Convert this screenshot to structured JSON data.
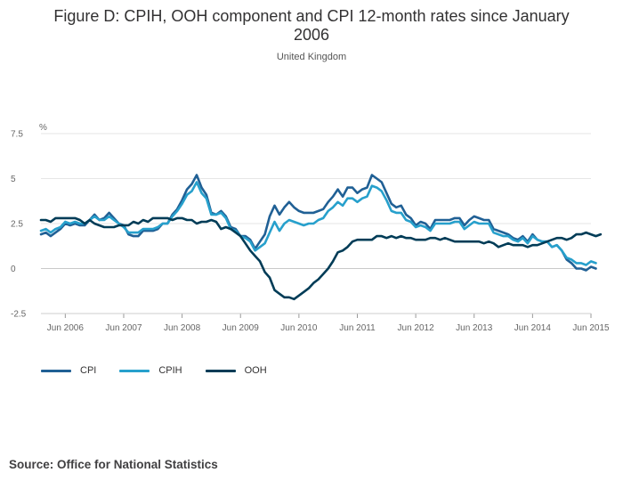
{
  "title": "Figure D: CPIH, OOH component and CPI 12-month rates since January 2006",
  "subtitle": "United Kingdom",
  "source": "Source: Office for National Statistics",
  "colors": {
    "CPI": "#206095",
    "CPIH": "#27a0cc",
    "OOH": "#003c57",
    "grid": "#e6e6e6",
    "zero": "#c9c9c9"
  },
  "chart_data": {
    "type": "line",
    "ylabel": "%",
    "ylim": [
      -2.5,
      7.5
    ],
    "yticks": [
      -2.5,
      0,
      2.5,
      5,
      7.5
    ],
    "ytick_labels": [
      "-2.5",
      "0",
      "2.5",
      "5",
      "7.5"
    ],
    "x_start": "2006-01",
    "x_end": "2015-06",
    "xtick_dates": [
      "2006-06",
      "2007-06",
      "2008-06",
      "2009-06",
      "2010-06",
      "2011-06",
      "2012-06",
      "2013-06",
      "2014-06",
      "2015-06"
    ],
    "xtick_labels": [
      "Jun 2006",
      "Jun 2007",
      "Jun 2008",
      "Jun 2009",
      "Jun 2010",
      "Jun 2011",
      "Jun 2012",
      "Jun 2013",
      "Jun 2014",
      "Jun 2015"
    ],
    "grid": true,
    "legend_position": "bottom-left",
    "series": [
      {
        "name": "CPI",
        "values": [
          1.9,
          2.0,
          1.8,
          2.0,
          2.2,
          2.5,
          2.4,
          2.5,
          2.4,
          2.4,
          2.7,
          3.0,
          2.7,
          2.8,
          3.1,
          2.8,
          2.5,
          2.4,
          1.9,
          1.8,
          1.8,
          2.1,
          2.1,
          2.1,
          2.2,
          2.5,
          2.5,
          3.0,
          3.3,
          3.8,
          4.4,
          4.7,
          5.2,
          4.5,
          4.1,
          3.1,
          3.0,
          3.2,
          2.9,
          2.3,
          2.2,
          1.8,
          1.8,
          1.6,
          1.1,
          1.5,
          1.9,
          2.9,
          3.5,
          3.0,
          3.4,
          3.7,
          3.4,
          3.2,
          3.1,
          3.1,
          3.1,
          3.2,
          3.3,
          3.7,
          4.0,
          4.4,
          4.0,
          4.5,
          4.5,
          4.2,
          4.4,
          4.5,
          5.2,
          5.0,
          4.8,
          4.2,
          3.6,
          3.4,
          3.5,
          3.0,
          2.8,
          2.4,
          2.6,
          2.5,
          2.2,
          2.7,
          2.7,
          2.7,
          2.7,
          2.8,
          2.8,
          2.4,
          2.7,
          2.9,
          2.8,
          2.7,
          2.7,
          2.2,
          2.1,
          2.0,
          1.9,
          1.7,
          1.6,
          1.8,
          1.5,
          1.9,
          1.6,
          1.5,
          1.5,
          1.2,
          1.3,
          1.0,
          0.5,
          0.3,
          0.0,
          0.0,
          -0.1,
          0.1,
          0.0
        ]
      },
      {
        "name": "CPIH",
        "values": [
          2.1,
          2.2,
          2.0,
          2.2,
          2.3,
          2.6,
          2.5,
          2.6,
          2.5,
          2.5,
          2.7,
          2.9,
          2.7,
          2.7,
          2.9,
          2.7,
          2.5,
          2.3,
          2.0,
          2.0,
          2.0,
          2.2,
          2.2,
          2.2,
          2.3,
          2.5,
          2.5,
          2.9,
          3.2,
          3.6,
          4.1,
          4.3,
          4.8,
          4.2,
          3.9,
          3.0,
          3.0,
          3.1,
          2.8,
          2.2,
          2.1,
          1.8,
          1.7,
          1.5,
          1.0,
          1.2,
          1.4,
          2.0,
          2.6,
          2.1,
          2.5,
          2.7,
          2.6,
          2.5,
          2.4,
          2.5,
          2.5,
          2.7,
          2.8,
          3.2,
          3.4,
          3.7,
          3.5,
          3.9,
          3.9,
          3.7,
          3.9,
          4.0,
          4.6,
          4.5,
          4.3,
          3.8,
          3.2,
          3.1,
          3.1,
          2.7,
          2.6,
          2.3,
          2.4,
          2.3,
          2.1,
          2.5,
          2.5,
          2.5,
          2.5,
          2.6,
          2.6,
          2.2,
          2.4,
          2.6,
          2.5,
          2.5,
          2.5,
          2.0,
          1.9,
          1.8,
          1.8,
          1.6,
          1.5,
          1.7,
          1.4,
          1.8,
          1.6,
          1.5,
          1.5,
          1.2,
          1.3,
          1.0,
          0.6,
          0.5,
          0.3,
          0.3,
          0.2,
          0.4,
          0.3
        ]
      },
      {
        "name": "OOH",
        "values": [
          2.7,
          2.7,
          2.6,
          2.8,
          2.8,
          2.8,
          2.8,
          2.8,
          2.7,
          2.5,
          2.7,
          2.5,
          2.4,
          2.3,
          2.3,
          2.3,
          2.4,
          2.4,
          2.4,
          2.6,
          2.5,
          2.7,
          2.6,
          2.8,
          2.8,
          2.8,
          2.8,
          2.7,
          2.8,
          2.8,
          2.7,
          2.7,
          2.5,
          2.6,
          2.6,
          2.7,
          2.6,
          2.2,
          2.3,
          2.2,
          2.0,
          1.8,
          1.4,
          1.0,
          0.7,
          0.4,
          -0.2,
          -0.5,
          -1.2,
          -1.4,
          -1.6,
          -1.6,
          -1.7,
          -1.5,
          -1.3,
          -1.1,
          -0.8,
          -0.6,
          -0.3,
          0.0,
          0.4,
          0.9,
          1.0,
          1.2,
          1.5,
          1.6,
          1.6,
          1.6,
          1.6,
          1.8,
          1.8,
          1.7,
          1.8,
          1.7,
          1.8,
          1.7,
          1.7,
          1.6,
          1.6,
          1.6,
          1.7,
          1.7,
          1.6,
          1.7,
          1.6,
          1.5,
          1.5,
          1.5,
          1.5,
          1.5,
          1.5,
          1.4,
          1.5,
          1.4,
          1.2,
          1.3,
          1.4,
          1.3,
          1.3,
          1.3,
          1.2,
          1.3,
          1.3,
          1.4,
          1.5,
          1.6,
          1.7,
          1.7,
          1.6,
          1.7,
          1.9,
          1.9,
          2.0,
          1.9,
          1.8,
          1.9
        ]
      }
    ]
  }
}
